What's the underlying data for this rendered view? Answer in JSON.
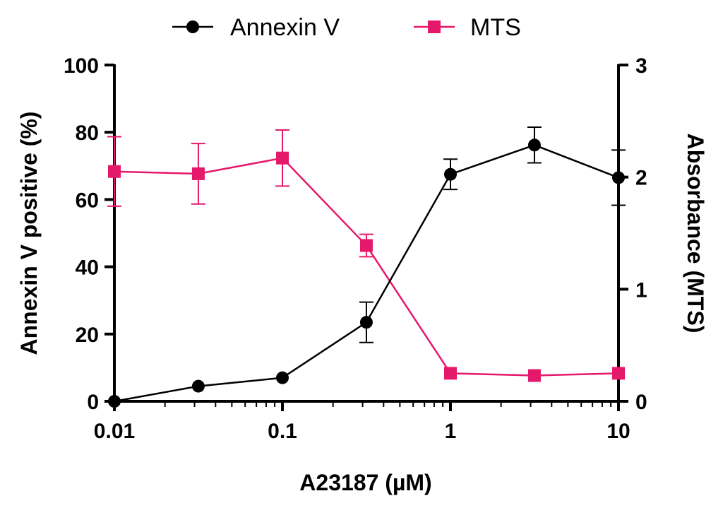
{
  "chart_data": {
    "type": "line",
    "xlabel": "A23187 (µM)",
    "ylabel": "Annexin V positive (%)",
    "y2label": "Absorbance (MTS)",
    "x_scale": "log",
    "xlim": [
      0.01,
      10
    ],
    "ylim": [
      0,
      100
    ],
    "y2lim": [
      0,
      3
    ],
    "x_ticks": [
      0.01,
      0.1,
      1,
      10
    ],
    "x_tick_labels": [
      "0.01",
      "0.1",
      "1",
      "10"
    ],
    "y_ticks": [
      0,
      20,
      40,
      60,
      80,
      100
    ],
    "y_tick_labels": [
      "0",
      "20",
      "40",
      "60",
      "80",
      "100"
    ],
    "y2_ticks": [
      0,
      1,
      2,
      3
    ],
    "y2_tick_labels": [
      "0",
      "1",
      "2",
      "3"
    ],
    "grid": false,
    "legend_position": "top-center",
    "series": [
      {
        "name": "Annexin V",
        "axis": "left",
        "marker": "circle",
        "color": "#000000",
        "x": [
          0.01,
          0.0316,
          0.1,
          0.316,
          1,
          3.16,
          10
        ],
        "y": [
          0,
          4.5,
          7,
          23.5,
          67.5,
          76.2,
          66.5
        ],
        "err": [
          0,
          0,
          0,
          6,
          4.5,
          5.3,
          8.2
        ]
      },
      {
        "name": "MTS",
        "axis": "right",
        "marker": "square",
        "color": "#e5196b",
        "x": [
          0.01,
          0.0316,
          0.1,
          0.316,
          1,
          3.16,
          10
        ],
        "y": [
          2.05,
          2.03,
          2.17,
          1.39,
          0.25,
          0.23,
          0.25
        ],
        "err": [
          0.31,
          0.27,
          0.25,
          0.1,
          0,
          0,
          0
        ]
      }
    ]
  }
}
